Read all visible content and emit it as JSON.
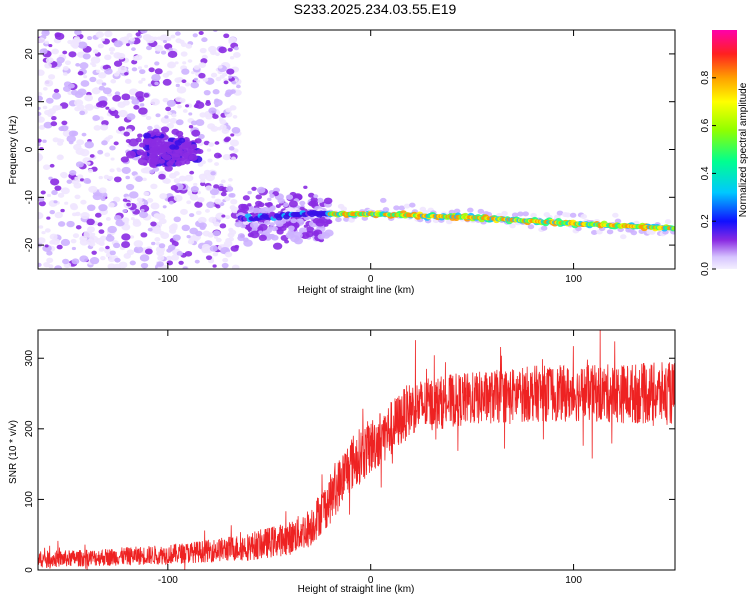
{
  "title": "S233.2025.234.03.55.E19",
  "colors": {
    "background": "#ffffff",
    "axis": "#000000",
    "snr_line": "#ee2222"
  },
  "chart_data": [
    {
      "type": "heatmap",
      "name": "spectrogram",
      "xlabel": "Height of straight line (km)",
      "ylabel": "Frequency (Hz)",
      "xlim": [
        -164,
        150
      ],
      "ylim": [
        -25,
        25
      ],
      "xticks": [
        -100,
        0,
        100
      ],
      "xtick_labels": [
        "-100",
        "0",
        "100"
      ],
      "yticks": [
        -20,
        -10,
        0,
        10,
        20
      ],
      "ytick_labels": [
        "-20",
        "-10",
        "0",
        "10",
        "20"
      ],
      "colorbar": {
        "label": "Normalized spectral amplitude",
        "range": [
          0,
          1
        ],
        "ticks": [
          0.0,
          0.2,
          0.4,
          0.6,
          0.8
        ],
        "tick_labels": [
          "0.0",
          "0.2",
          "0.4",
          "0.6",
          "0.8"
        ]
      },
      "features": {
        "noise_region_x": [
          -164,
          -65
        ],
        "strong_cluster_center": [
          -100,
          0
        ],
        "signal_track": [
          {
            "x": -64,
            "y": -14.5
          },
          {
            "x": -30,
            "y": -13.5
          },
          {
            "x": 0,
            "y": -13.5
          },
          {
            "x": 50,
            "y": -14.2
          },
          {
            "x": 100,
            "y": -15.5
          },
          {
            "x": 150,
            "y": -16.5
          }
        ]
      }
    },
    {
      "type": "line",
      "name": "snr",
      "xlabel": "Height of straight line (km)",
      "ylabel": "SNR (10 * v/v)",
      "xlim": [
        -164,
        150
      ],
      "ylim": [
        0,
        340
      ],
      "xticks": [
        -100,
        0,
        100
      ],
      "xtick_labels": [
        "-100",
        "0",
        "100"
      ],
      "yticks": [
        0,
        100,
        200,
        300
      ],
      "ytick_labels": [
        "0",
        "100",
        "200",
        "300"
      ],
      "envelope": {
        "x": [
          -164,
          -140,
          -100,
          -80,
          -60,
          -40,
          -30,
          -20,
          -10,
          0,
          10,
          20,
          40,
          60,
          80,
          100,
          120,
          150
        ],
        "mean": [
          15,
          17,
          22,
          27,
          33,
          45,
          60,
          100,
          150,
          175,
          200,
          230,
          240,
          245,
          250,
          250,
          250,
          250
        ],
        "spread": [
          12,
          12,
          14,
          16,
          20,
          24,
          28,
          35,
          40,
          40,
          40,
          38,
          38,
          38,
          40,
          40,
          42,
          45
        ]
      }
    }
  ]
}
